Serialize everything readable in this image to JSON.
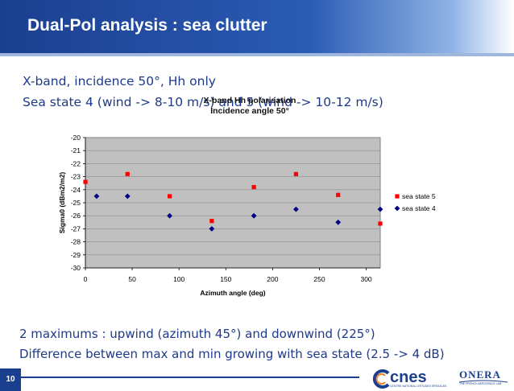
{
  "slide": {
    "title": "Dual-Pol analysis : sea clutter",
    "intro_line1": "X-band, incidence 50°, Hh only",
    "intro_line2": "Sea state 4 (wind -> 8-10 m/s) and 5 (wind -> 10-12 m/s)",
    "bottom_line1": "2 maximums : upwind (azimuth 45°) and downwind (225°)",
    "bottom_line2": "Difference between max and min growing with sea state (2.5 -> 4 dB)",
    "page_number": "10"
  },
  "logos": {
    "cnes_text": "cnes",
    "cnes_subtitle": "CENTRE NATIONAL D'ÉTUDES SPATIALES",
    "onera_text": "ONERA",
    "onera_subtitle": "THE FRENCH AEROSPACE LAB"
  },
  "colors": {
    "accent": "#1b3f8f",
    "text": "#1e3a8a",
    "plot_bg": "#c0c0c0",
    "sea_state_5": "#ff0000",
    "sea_state_4": "#000080"
  },
  "chart_data": {
    "type": "scatter",
    "title_line1": "X-band Hh polarisation",
    "title_line2": "Incidence angle 50°",
    "xlabel": "Azimuth angle (deg)",
    "ylabel": "Sigma0 (dBm2/m2)",
    "xlim": [
      0,
      315
    ],
    "ylim": [
      -30,
      -20
    ],
    "xticks": [
      0,
      50,
      100,
      150,
      200,
      250,
      300
    ],
    "yticks": [
      -20,
      -21,
      -22,
      -23,
      -24,
      -25,
      -26,
      -27,
      -28,
      -29,
      -30
    ],
    "grid": "horizontal",
    "legend_position": "right",
    "series": [
      {
        "name": "sea state 5",
        "marker": "square",
        "color": "#ff0000",
        "x": [
          0,
          45,
          90,
          135,
          180,
          225,
          270,
          315
        ],
        "y": [
          -23.4,
          -22.8,
          -24.5,
          -26.4,
          -23.8,
          -22.8,
          -24.4,
          -26.6
        ]
      },
      {
        "name": "sea state 4",
        "marker": "diamond",
        "color": "#000080",
        "x": [
          12,
          45,
          90,
          135,
          180,
          225,
          270,
          315
        ],
        "y": [
          -24.5,
          -24.5,
          -26.0,
          -27.0,
          -26.0,
          -25.5,
          -26.5,
          -25.5
        ]
      }
    ]
  }
}
